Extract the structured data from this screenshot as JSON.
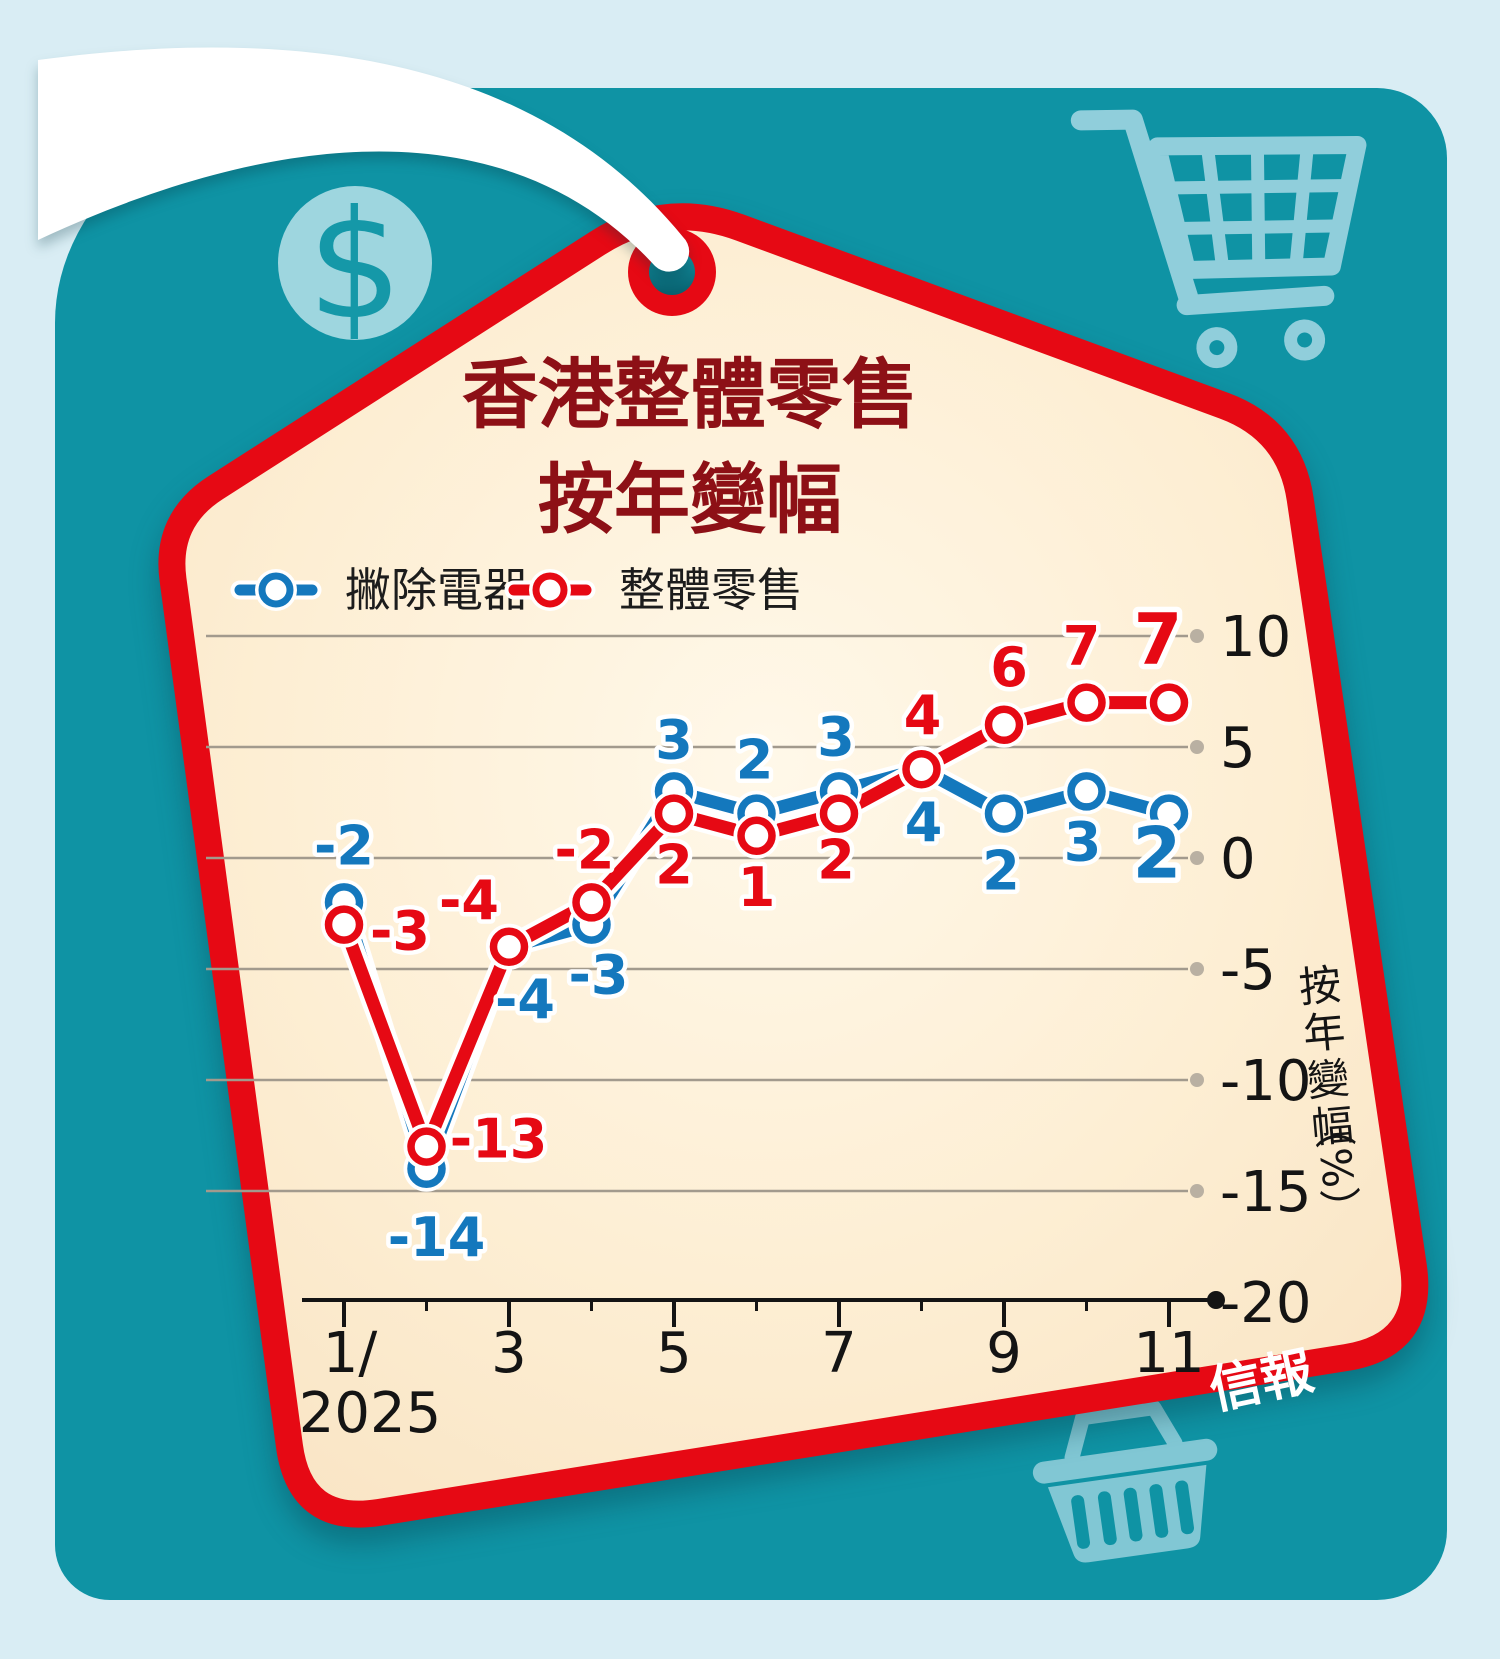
{
  "title": {
    "line1": "香港整體零售",
    "line2": "按年變幅"
  },
  "legend": {
    "items": [
      {
        "label": "撇除電器"
      },
      {
        "label": "整體零售"
      }
    ]
  },
  "chart_data": {
    "type": "line",
    "title": "香港整體零售按年變幅",
    "x_months": [
      1,
      2,
      3,
      4,
      5,
      6,
      7,
      8,
      9,
      10,
      11
    ],
    "x_tick_labels": [
      "1/",
      "3",
      "5",
      "7",
      "9",
      "11"
    ],
    "x_first_label_year": "2025",
    "y_ticks": [
      10,
      5,
      0,
      -5,
      -10,
      -15,
      -20
    ],
    "ylim": [
      -20,
      10
    ],
    "ylabel": "按年變幅（%）",
    "grid": "horizontal gray lines, dotted right ends",
    "legend_position": "top",
    "series": [
      {
        "name": "撇除電器",
        "color": "#1478bd",
        "values": [
          -2,
          -14,
          -4,
          -3,
          3,
          2,
          3,
          4,
          2,
          3,
          2
        ]
      },
      {
        "name": "整體零售",
        "color": "#e60914",
        "values": [
          -3,
          -13,
          -4,
          -2,
          2,
          1,
          2,
          4,
          6,
          7,
          7
        ]
      }
    ]
  },
  "branding": {
    "logo": "信報"
  },
  "icons": {
    "dollar": "$",
    "cart": "shopping-cart-icon",
    "basket": "shopping-basket-icon"
  },
  "colors": {
    "background_teal": "#0f93a4",
    "frame_light_blue": "#d9edf4",
    "tag_fill": "#fdeed3",
    "tag_border_red": "#e60914",
    "title_maroon": "#8d1016",
    "text_black": "#1a1a1a",
    "grid_gray": "#a29a8d",
    "series_blue": "#1478bd",
    "series_red": "#e60914",
    "icon_light_blue": "#9bd3e0"
  }
}
